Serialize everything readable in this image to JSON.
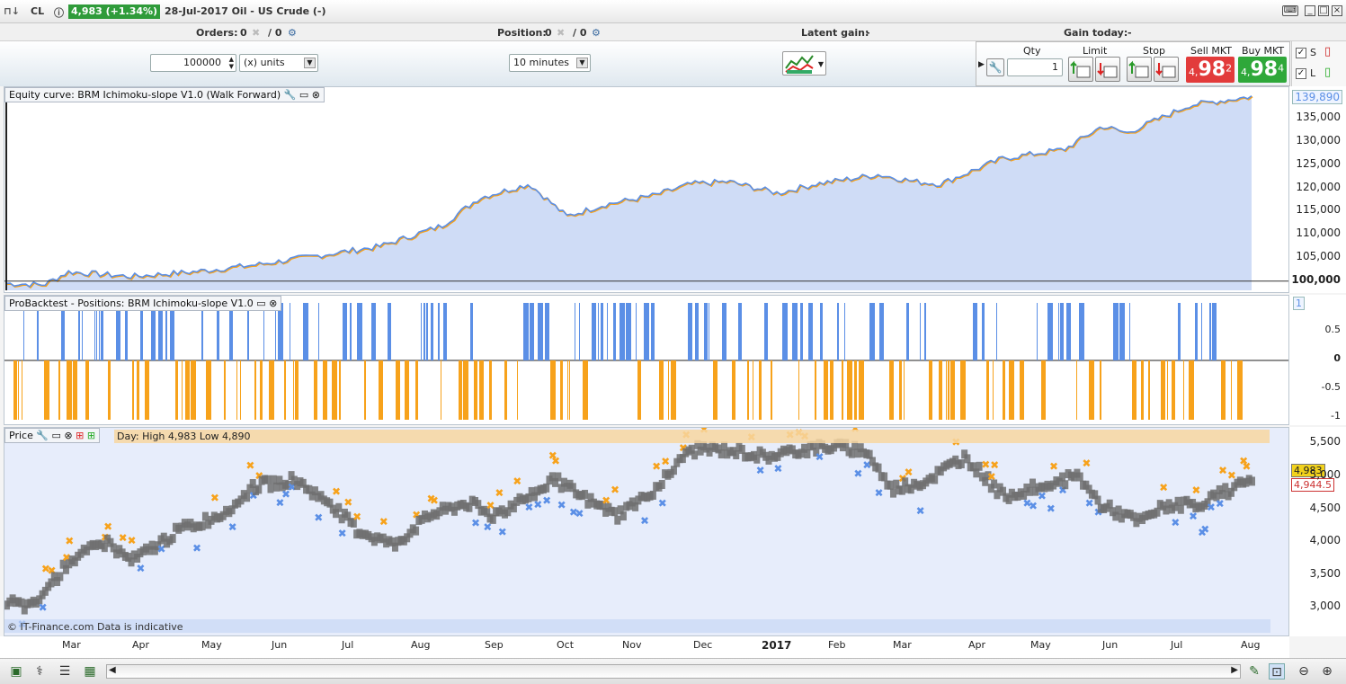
{
  "titlebar": {
    "symbol": "CL",
    "price_badge": "4,983 (+1.34%)",
    "instrument": "28-Jul-2017 Oil - US Crude (-)"
  },
  "status": {
    "orders_label": "Orders:",
    "orders_v1": "0",
    "orders_v2": "/ 0",
    "position_label": "Position:",
    "position_v1": "0",
    "position_v2": "/ 0",
    "latent_label": "Latent gain:",
    "latent_value": "-",
    "gain_label": "Gain today:",
    "gain_value": "-"
  },
  "toolbar": {
    "quantity": "100000",
    "units": "(x) units",
    "timeframe": "10 minutes"
  },
  "order": {
    "qty_label": "Qty",
    "limit_label": "Limit",
    "stop_label": "Stop",
    "sell_label": "Sell MKT",
    "buy_label": "Buy MKT",
    "qty_value": "1",
    "sell_prefix": "4,",
    "sell_big": "98",
    "sell_sup": "2",
    "buy_prefix": "4,",
    "buy_big": "98",
    "buy_sup": "4",
    "check_s": "S",
    "check_l": "L"
  },
  "colors": {
    "blue": "#5b8fe6",
    "orange": "#f7a21b",
    "fill": "#cfdcf6",
    "grey": "#6e6e6e"
  },
  "equity": {
    "title": "Equity curve: BRM Ichimoku-slope V1.0 (Walk Forward)",
    "current": "139,890",
    "yticks": [
      {
        "v": 135000,
        "l": "135,000"
      },
      {
        "v": 130000,
        "l": "130,000"
      },
      {
        "v": 125000,
        "l": "125,000"
      },
      {
        "v": 120000,
        "l": "120,000"
      },
      {
        "v": 115000,
        "l": "115,000"
      },
      {
        "v": 110000,
        "l": "110,000"
      },
      {
        "v": 105000,
        "l": "105,000"
      },
      {
        "v": 100000,
        "l": "100,000"
      }
    ]
  },
  "positions": {
    "title": "ProBacktest - Positions: BRM Ichimoku-slope V1.0",
    "current": "1",
    "yticks": [
      {
        "v": 0.5,
        "l": "0.5"
      },
      {
        "v": 0,
        "l": "0"
      },
      {
        "v": -0.5,
        "l": "-0.5"
      },
      {
        "v": -1,
        "l": "-1"
      }
    ]
  },
  "price": {
    "title": "Price",
    "info": "Day: High 4,983 Low 4,890",
    "current": "4,983",
    "ref": "4,944.5",
    "watermark": "© IT-Finance.com Data is indicative",
    "yticks": [
      {
        "v": 5500,
        "l": "5,500"
      },
      {
        "v": 5000,
        "l": "5,000"
      },
      {
        "v": 4500,
        "l": "4,500"
      },
      {
        "v": 4000,
        "l": "4,000"
      },
      {
        "v": 3500,
        "l": "3,500"
      },
      {
        "v": 3000,
        "l": "3,000"
      }
    ]
  },
  "xaxis": [
    {
      "l": "Mar",
      "b": false
    },
    {
      "l": "Apr",
      "b": false
    },
    {
      "l": "May",
      "b": false
    },
    {
      "l": "Jun",
      "b": false
    },
    {
      "l": "Jul",
      "b": false
    },
    {
      "l": "Aug",
      "b": false
    },
    {
      "l": "Sep",
      "b": false
    },
    {
      "l": "Oct",
      "b": false
    },
    {
      "l": "Nov",
      "b": false
    },
    {
      "l": "Dec",
      "b": false
    },
    {
      "l": "2017",
      "b": true
    },
    {
      "l": "Feb",
      "b": false
    },
    {
      "l": "Mar",
      "b": false
    },
    {
      "l": "Apr",
      "b": false
    },
    {
      "l": "May",
      "b": false
    },
    {
      "l": "Jun",
      "b": false
    },
    {
      "l": "Jul",
      "b": false
    },
    {
      "l": "Aug",
      "b": false
    }
  ],
  "chart_data": [
    {
      "type": "area",
      "title": "Equity curve: BRM Ichimoku-slope V1.0 (Walk Forward)",
      "ylim": [
        98000,
        141500
      ],
      "x": [
        0,
        0.03,
        0.05,
        0.1,
        0.15,
        0.2,
        0.25,
        0.3,
        0.35,
        0.38,
        0.42,
        0.45,
        0.48,
        0.52,
        0.55,
        0.58,
        0.62,
        0.65,
        0.7,
        0.73,
        0.75,
        0.8,
        0.85,
        0.88,
        0.9,
        0.95,
        1.0
      ],
      "series": [
        {
          "name": "equity",
          "values": [
            99500,
            99200,
            102000,
            101000,
            102000,
            103500,
            105500,
            107500,
            112000,
            118000,
            121000,
            114000,
            116500,
            118500,
            121000,
            121500,
            119000,
            121000,
            123000,
            121500,
            121000,
            126500,
            128500,
            133500,
            132000,
            138000,
            139890
          ]
        }
      ]
    },
    {
      "type": "bar",
      "title": "ProBacktest - Positions: BRM Ichimoku-slope V1.0",
      "ylim": [
        -1,
        1
      ],
      "series": [
        {
          "name": "long",
          "value": 1
        },
        {
          "name": "short",
          "value": -1
        }
      ]
    },
    {
      "type": "scatter",
      "title": "Price",
      "ylim": [
        2800,
        5600
      ],
      "x": [
        0,
        0.02,
        0.05,
        0.08,
        0.1,
        0.14,
        0.17,
        0.2,
        0.23,
        0.26,
        0.28,
        0.31,
        0.34,
        0.37,
        0.39,
        0.42,
        0.44,
        0.47,
        0.49,
        0.52,
        0.55,
        0.58,
        0.61,
        0.64,
        0.66,
        0.69,
        0.71,
        0.74,
        0.77,
        0.8,
        0.83,
        0.86,
        0.88,
        0.91,
        0.93,
        0.96,
        1.0
      ],
      "series": [
        {
          "name": "price",
          "values": [
            3100,
            3000,
            3700,
            4000,
            3700,
            4200,
            4400,
            4850,
            4950,
            4600,
            4200,
            3950,
            4400,
            4600,
            4400,
            4700,
            4950,
            4600,
            4400,
            4800,
            5400,
            5400,
            5300,
            5400,
            5450,
            5400,
            4800,
            4950,
            5300,
            4700,
            4850,
            5000,
            4550,
            4300,
            4550,
            4600,
            4950
          ]
        }
      ]
    }
  ]
}
